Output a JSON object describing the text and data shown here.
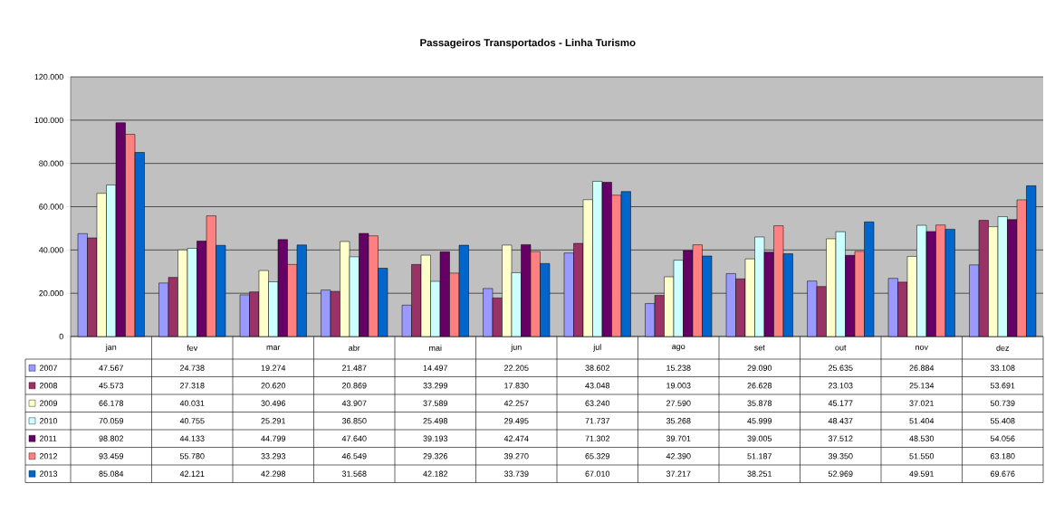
{
  "chart_data": {
    "type": "bar",
    "title": "Passageiros Transportados - Linha Turismo",
    "categories": [
      "jan",
      "fev",
      "mar",
      "abr",
      "mai",
      "jun",
      "jul",
      "ago",
      "set",
      "out",
      "nov",
      "dez"
    ],
    "series": [
      {
        "name": "2007",
        "color": "#9999ff",
        "values": [
          47567,
          24738,
          19274,
          21487,
          14497,
          22205,
          38602,
          15238,
          29090,
          25635,
          26884,
          33108
        ],
        "value_labels": [
          "47.567",
          "24.738",
          "19.274",
          "21.487",
          "14.497",
          "22.205",
          "38.602",
          "15.238",
          "29.090",
          "25.635",
          "26.884",
          "33.108"
        ]
      },
      {
        "name": "2008",
        "color": "#993366",
        "values": [
          45573,
          27318,
          20620,
          20869,
          33299,
          17830,
          43048,
          19003,
          26628,
          23103,
          25134,
          53691
        ],
        "value_labels": [
          "45.573",
          "27.318",
          "20.620",
          "20.869",
          "33.299",
          "17.830",
          "43.048",
          "19.003",
          "26.628",
          "23.103",
          "25.134",
          "53.691"
        ]
      },
      {
        "name": "2009",
        "color": "#ffffcc",
        "values": [
          66178,
          40031,
          30496,
          43907,
          37589,
          42257,
          63240,
          27590,
          35878,
          45177,
          37021,
          50739
        ],
        "value_labels": [
          "66.178",
          "40.031",
          "30.496",
          "43.907",
          "37.589",
          "42.257",
          "63.240",
          "27.590",
          "35.878",
          "45.177",
          "37.021",
          "50.739"
        ]
      },
      {
        "name": "2010",
        "color": "#ccffff",
        "values": [
          70059,
          40755,
          25291,
          36850,
          25498,
          29495,
          71737,
          35268,
          45999,
          48437,
          51404,
          55408
        ],
        "value_labels": [
          "70.059",
          "40.755",
          "25.291",
          "36.850",
          "25.498",
          "29.495",
          "71.737",
          "35.268",
          "45.999",
          "48.437",
          "51.404",
          "55.408"
        ]
      },
      {
        "name": "2011",
        "color": "#660066",
        "values": [
          98802,
          44133,
          44799,
          47640,
          39193,
          42474,
          71302,
          39701,
          39005,
          37512,
          48530,
          54056
        ],
        "value_labels": [
          "98.802",
          "44.133",
          "44.799",
          "47.640",
          "39.193",
          "42.474",
          "71.302",
          "39.701",
          "39.005",
          "37.512",
          "48.530",
          "54.056"
        ]
      },
      {
        "name": "2012",
        "color": "#ff8080",
        "values": [
          93459,
          55780,
          33293,
          46549,
          29326,
          39270,
          65329,
          42390,
          51187,
          39350,
          51550,
          63180
        ],
        "value_labels": [
          "93.459",
          "55.780",
          "33.293",
          "46.549",
          "29.326",
          "39.270",
          "65.329",
          "42.390",
          "51.187",
          "39.350",
          "51.550",
          "63.180"
        ]
      },
      {
        "name": "2013",
        "color": "#0066cc",
        "values": [
          85084,
          42121,
          42298,
          31568,
          42182,
          33739,
          67010,
          37217,
          38251,
          52969,
          49591,
          69676
        ],
        "value_labels": [
          "85.084",
          "42.121",
          "42.298",
          "31.568",
          "42.182",
          "33.739",
          "67.010",
          "37.217",
          "38.251",
          "52.969",
          "49.591",
          "69.676"
        ]
      }
    ],
    "ylim": [
      0,
      120000
    ],
    "yticks": [
      {
        "value": 0,
        "label": "0"
      },
      {
        "value": 20000,
        "label": "20.000"
      },
      {
        "value": 40000,
        "label": "40.000"
      },
      {
        "value": 60000,
        "label": "60.000"
      },
      {
        "value": 80000,
        "label": "80.000"
      },
      {
        "value": 100000,
        "label": "100.000"
      },
      {
        "value": 120000,
        "label": "120.000"
      }
    ],
    "grid": "y",
    "legend": "bottom"
  }
}
